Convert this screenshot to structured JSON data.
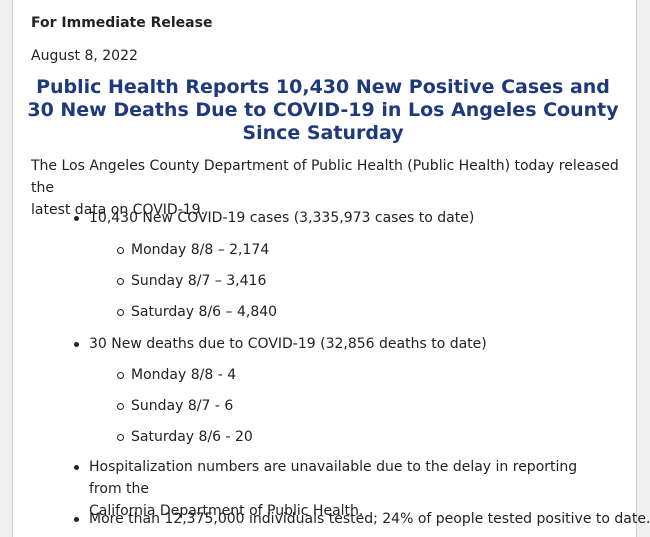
{
  "header": {
    "release_label": "For Immediate Release",
    "date": "August 8, 2022"
  },
  "headline": {
    "line1": "Public Health Reports 10,430 New Positive Cases and",
    "line2": "30 New Deaths Due to COVID-19 in Los Angeles County",
    "line3": "Since Saturday"
  },
  "intro": {
    "line1": "The Los Angeles County Department of Public Health (Public Health) today released the",
    "line2": "latest data on COVID-19."
  },
  "cases": {
    "summary": "10,430 New COVID-19 cases (3,335,973 cases to date)",
    "items": [
      "Monday 8/8 – 2,174",
      "Sunday 8/7 – 3,416",
      "Saturday 8/6 – 4,840"
    ]
  },
  "deaths": {
    "summary": "30 New deaths due to COVID-19 (32,856 deaths to date)",
    "items": [
      "Monday 8/8 - 4",
      "Sunday 8/7 - 6",
      "Saturday 8/6 - 20"
    ]
  },
  "hospitalization": {
    "line1": "Hospitalization numbers are unavailable due to the delay in reporting from the",
    "line2": "California Department of Public Health."
  },
  "testing": {
    "text": "More than 12,375,000 individuals tested; 24% of people tested positive to date."
  }
}
